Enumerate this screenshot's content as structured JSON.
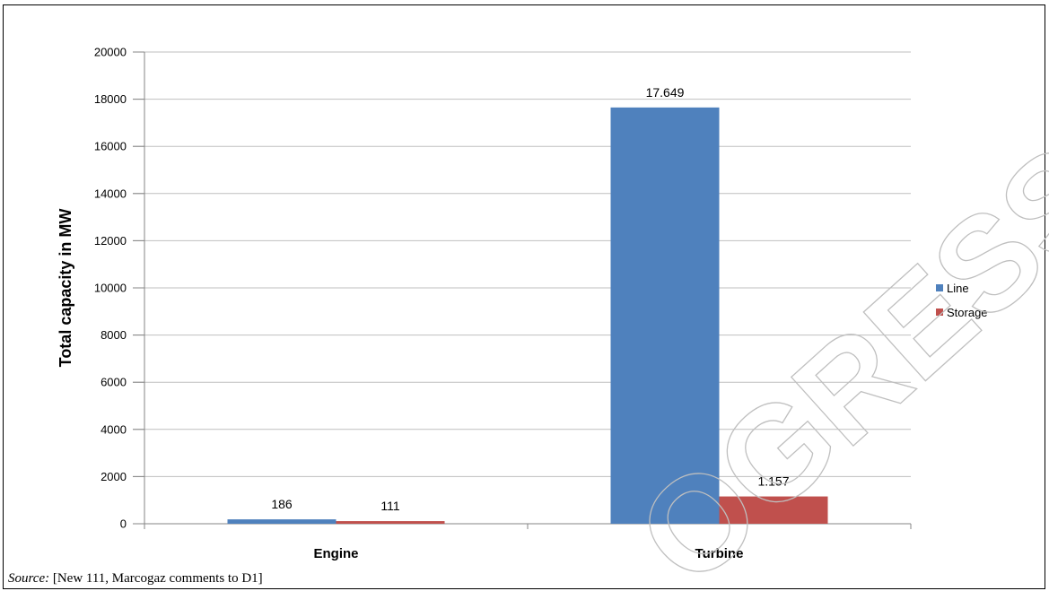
{
  "chart_data": {
    "type": "bar",
    "ylabel": "Total capacity in MW",
    "xlabel": "",
    "title": "",
    "ylim": [
      0,
      20000
    ],
    "yticks": [
      0,
      2000,
      4000,
      6000,
      8000,
      10000,
      12000,
      14000,
      16000,
      18000,
      20000
    ],
    "categories": [
      "Engine",
      "Turbine"
    ],
    "series": [
      {
        "name": "Line",
        "color": "#4f81bd",
        "values": [
          186,
          17649
        ],
        "data_labels": [
          "186",
          "17.649"
        ]
      },
      {
        "name": "Storage",
        "color": "#c0504d",
        "values": [
          111,
          1157
        ],
        "data_labels": [
          "111",
          "1.157"
        ]
      }
    ],
    "grid": true,
    "legend_position": "right"
  },
  "source": {
    "label": "Source:",
    "text": " [New 111, Marcogaz comments to D1]"
  },
  "watermark": {
    "description": "large faint outlined diagonal lettering",
    "text": "PROGRESS"
  }
}
